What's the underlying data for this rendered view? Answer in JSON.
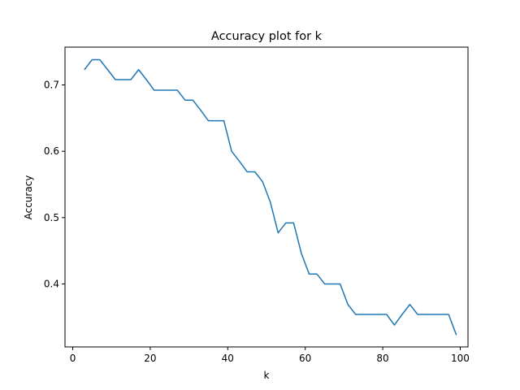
{
  "chart_data": {
    "type": "line",
    "title": "Accuracy plot for k",
    "xlabel": "k",
    "ylabel": "Accuracy",
    "xlim": [
      -2,
      102
    ],
    "ylim": [
      0.305,
      0.757
    ],
    "xticks": [
      0,
      20,
      40,
      60,
      80,
      100
    ],
    "xtick_labels": [
      "0",
      "20",
      "40",
      "60",
      "80",
      "100"
    ],
    "yticks": [
      0.4,
      0.5,
      0.6,
      0.7
    ],
    "ytick_labels": [
      "0.4",
      "0.5",
      "0.6",
      "0.7"
    ],
    "grid": false,
    "line_color": "#1f77b4",
    "series": [
      {
        "x": [
          3,
          5,
          7,
          9,
          11,
          13,
          15,
          17,
          19,
          21,
          23,
          25,
          27,
          29,
          31,
          33,
          35,
          37,
          39,
          41,
          43,
          45,
          47,
          49,
          51,
          53,
          55,
          57,
          59,
          61,
          63,
          65,
          67,
          69,
          71,
          73,
          75,
          77,
          79,
          81,
          83,
          85,
          87,
          89,
          91,
          93,
          95,
          97,
          99
        ],
        "y": [
          0.723,
          0.738,
          0.738,
          0.723,
          0.708,
          0.708,
          0.708,
          0.723,
          0.708,
          0.692,
          0.692,
          0.692,
          0.692,
          0.677,
          0.677,
          0.662,
          0.646,
          0.646,
          0.646,
          0.6,
          0.585,
          0.569,
          0.569,
          0.554,
          0.523,
          0.477,
          0.492,
          0.492,
          0.446,
          0.415,
          0.415,
          0.4,
          0.4,
          0.4,
          0.369,
          0.354,
          0.354,
          0.354,
          0.354,
          0.354,
          0.338,
          0.354,
          0.369,
          0.354,
          0.354,
          0.354,
          0.354,
          0.354,
          0.323
        ]
      }
    ]
  }
}
